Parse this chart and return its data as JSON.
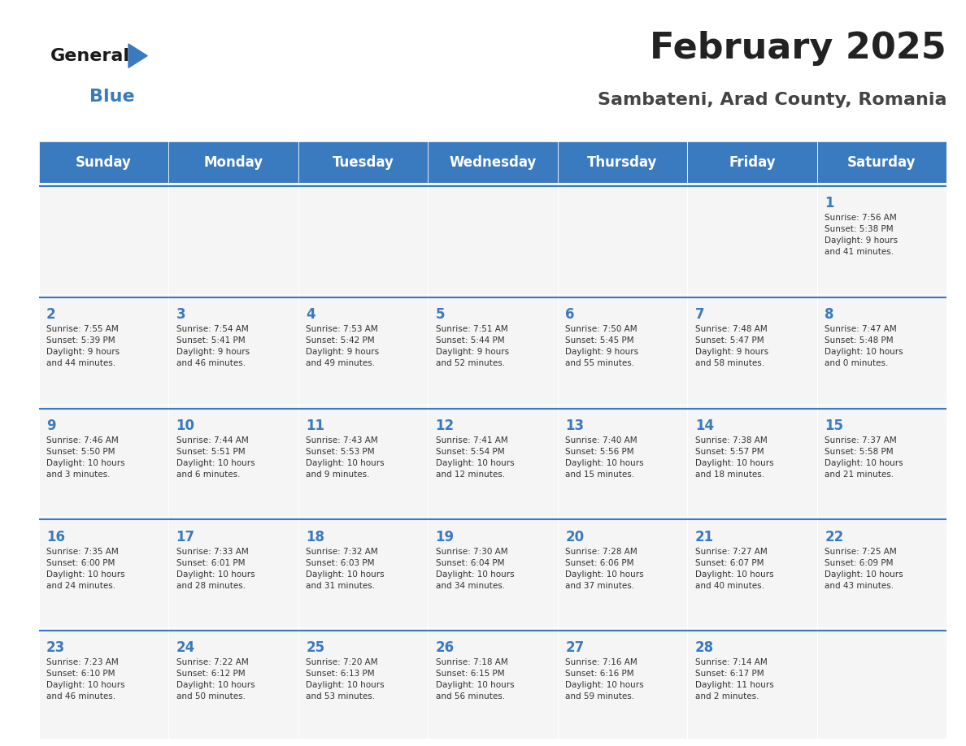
{
  "title": "February 2025",
  "subtitle": "Sambateni, Arad County, Romania",
  "header_color": "#3a7abf",
  "header_text_color": "#ffffff",
  "cell_bg_light": "#f0f0f0",
  "cell_bg_white": "#ffffff",
  "day_names": [
    "Sunday",
    "Monday",
    "Tuesday",
    "Wednesday",
    "Thursday",
    "Friday",
    "Saturday"
  ],
  "text_color": "#333333",
  "number_color": "#3a7abf",
  "line_color": "#3a7abf",
  "calendar": [
    [
      {
        "day": null,
        "info": null
      },
      {
        "day": null,
        "info": null
      },
      {
        "day": null,
        "info": null
      },
      {
        "day": null,
        "info": null
      },
      {
        "day": null,
        "info": null
      },
      {
        "day": null,
        "info": null
      },
      {
        "day": 1,
        "info": "Sunrise: 7:56 AM\nSunset: 5:38 PM\nDaylight: 9 hours\nand 41 minutes."
      }
    ],
    [
      {
        "day": 2,
        "info": "Sunrise: 7:55 AM\nSunset: 5:39 PM\nDaylight: 9 hours\nand 44 minutes."
      },
      {
        "day": 3,
        "info": "Sunrise: 7:54 AM\nSunset: 5:41 PM\nDaylight: 9 hours\nand 46 minutes."
      },
      {
        "day": 4,
        "info": "Sunrise: 7:53 AM\nSunset: 5:42 PM\nDaylight: 9 hours\nand 49 minutes."
      },
      {
        "day": 5,
        "info": "Sunrise: 7:51 AM\nSunset: 5:44 PM\nDaylight: 9 hours\nand 52 minutes."
      },
      {
        "day": 6,
        "info": "Sunrise: 7:50 AM\nSunset: 5:45 PM\nDaylight: 9 hours\nand 55 minutes."
      },
      {
        "day": 7,
        "info": "Sunrise: 7:48 AM\nSunset: 5:47 PM\nDaylight: 9 hours\nand 58 minutes."
      },
      {
        "day": 8,
        "info": "Sunrise: 7:47 AM\nSunset: 5:48 PM\nDaylight: 10 hours\nand 0 minutes."
      }
    ],
    [
      {
        "day": 9,
        "info": "Sunrise: 7:46 AM\nSunset: 5:50 PM\nDaylight: 10 hours\nand 3 minutes."
      },
      {
        "day": 10,
        "info": "Sunrise: 7:44 AM\nSunset: 5:51 PM\nDaylight: 10 hours\nand 6 minutes."
      },
      {
        "day": 11,
        "info": "Sunrise: 7:43 AM\nSunset: 5:53 PM\nDaylight: 10 hours\nand 9 minutes."
      },
      {
        "day": 12,
        "info": "Sunrise: 7:41 AM\nSunset: 5:54 PM\nDaylight: 10 hours\nand 12 minutes."
      },
      {
        "day": 13,
        "info": "Sunrise: 7:40 AM\nSunset: 5:56 PM\nDaylight: 10 hours\nand 15 minutes."
      },
      {
        "day": 14,
        "info": "Sunrise: 7:38 AM\nSunset: 5:57 PM\nDaylight: 10 hours\nand 18 minutes."
      },
      {
        "day": 15,
        "info": "Sunrise: 7:37 AM\nSunset: 5:58 PM\nDaylight: 10 hours\nand 21 minutes."
      }
    ],
    [
      {
        "day": 16,
        "info": "Sunrise: 7:35 AM\nSunset: 6:00 PM\nDaylight: 10 hours\nand 24 minutes."
      },
      {
        "day": 17,
        "info": "Sunrise: 7:33 AM\nSunset: 6:01 PM\nDaylight: 10 hours\nand 28 minutes."
      },
      {
        "day": 18,
        "info": "Sunrise: 7:32 AM\nSunset: 6:03 PM\nDaylight: 10 hours\nand 31 minutes."
      },
      {
        "day": 19,
        "info": "Sunrise: 7:30 AM\nSunset: 6:04 PM\nDaylight: 10 hours\nand 34 minutes."
      },
      {
        "day": 20,
        "info": "Sunrise: 7:28 AM\nSunset: 6:06 PM\nDaylight: 10 hours\nand 37 minutes."
      },
      {
        "day": 21,
        "info": "Sunrise: 7:27 AM\nSunset: 6:07 PM\nDaylight: 10 hours\nand 40 minutes."
      },
      {
        "day": 22,
        "info": "Sunrise: 7:25 AM\nSunset: 6:09 PM\nDaylight: 10 hours\nand 43 minutes."
      }
    ],
    [
      {
        "day": 23,
        "info": "Sunrise: 7:23 AM\nSunset: 6:10 PM\nDaylight: 10 hours\nand 46 minutes."
      },
      {
        "day": 24,
        "info": "Sunrise: 7:22 AM\nSunset: 6:12 PM\nDaylight: 10 hours\nand 50 minutes."
      },
      {
        "day": 25,
        "info": "Sunrise: 7:20 AM\nSunset: 6:13 PM\nDaylight: 10 hours\nand 53 minutes."
      },
      {
        "day": 26,
        "info": "Sunrise: 7:18 AM\nSunset: 6:15 PM\nDaylight: 10 hours\nand 56 minutes."
      },
      {
        "day": 27,
        "info": "Sunrise: 7:16 AM\nSunset: 6:16 PM\nDaylight: 10 hours\nand 59 minutes."
      },
      {
        "day": 28,
        "info": "Sunrise: 7:14 AM\nSunset: 6:17 PM\nDaylight: 11 hours\nand 2 minutes."
      },
      {
        "day": null,
        "info": null
      }
    ]
  ],
  "logo_general_color": "#1a1a1a",
  "logo_blue_color": "#3a7abf"
}
